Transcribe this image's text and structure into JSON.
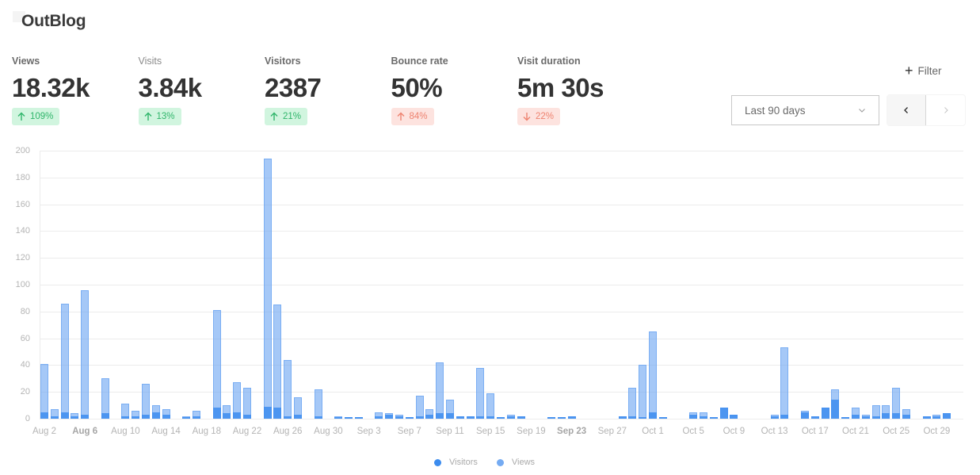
{
  "app": {
    "title": "OutBlog"
  },
  "metrics": [
    {
      "label": "Views",
      "value": "18.32k",
      "change": "109%",
      "direction": "up",
      "sentiment": "good",
      "label_style": "bold"
    },
    {
      "label": "Visits",
      "value": "3.84k",
      "change": "13%",
      "direction": "up",
      "sentiment": "good",
      "label_style": "light"
    },
    {
      "label": "Visitors",
      "value": "2387",
      "change": "21%",
      "direction": "up",
      "sentiment": "good",
      "label_style": "bold"
    },
    {
      "label": "Bounce rate",
      "value": "50%",
      "change": "84%",
      "direction": "up",
      "sentiment": "bad",
      "label_style": "bold"
    },
    {
      "label": "Visit duration",
      "value": "5m 30s",
      "change": "22%",
      "direction": "down",
      "sentiment": "bad",
      "label_style": "bold"
    }
  ],
  "controls": {
    "filter_label": "Filter",
    "date_range": "Last 90 days",
    "prev_icon": "chevron-left-icon",
    "next_icon": "chevron-right-icon"
  },
  "colors": {
    "visitors": "#3c8cee",
    "views": "#75abf2",
    "good_bg": "#d1f5df",
    "good_fg": "#2fb56a",
    "bad_bg": "#fde3df",
    "bad_fg": "#ee8370"
  },
  "legend": [
    {
      "label": "Visitors",
      "color": "#3c8cee"
    },
    {
      "label": "Views",
      "color": "#75abf2"
    }
  ],
  "chart_data": {
    "type": "bar",
    "stacked": "overlay",
    "title": "",
    "xlabel": "",
    "ylabel": "",
    "ylim": [
      0,
      200
    ],
    "yticks": [
      0,
      20,
      40,
      60,
      80,
      100,
      120,
      140,
      160,
      180,
      200
    ],
    "grid": true,
    "legend_position": "bottom",
    "x_tick_labels": [
      "Aug 2",
      "Aug 6",
      "Aug 10",
      "Aug 14",
      "Aug 18",
      "Aug 22",
      "Aug 26",
      "Aug 30",
      "Sep 3",
      "Sep 7",
      "Sep 11",
      "Sep 15",
      "Sep 19",
      "Sep 23",
      "Sep 27",
      "Oct 1",
      "Oct 5",
      "Oct 9",
      "Oct 13",
      "Oct 17",
      "Oct 21",
      "Oct 25",
      "Oct 29"
    ],
    "bold_tick_labels": [
      "Aug 6",
      "Sep 23"
    ],
    "categories": [
      "Aug 2",
      "Aug 3",
      "Aug 4",
      "Aug 5",
      "Aug 6",
      "Aug 7",
      "Aug 8",
      "Aug 9",
      "Aug 10",
      "Aug 11",
      "Aug 12",
      "Aug 13",
      "Aug 14",
      "Aug 15",
      "Aug 16",
      "Aug 17",
      "Aug 18",
      "Aug 19",
      "Aug 20",
      "Aug 21",
      "Aug 22",
      "Aug 23",
      "Aug 24",
      "Aug 25",
      "Aug 26",
      "Aug 27",
      "Aug 28",
      "Aug 29",
      "Aug 30",
      "Aug 31",
      "Sep 1",
      "Sep 2",
      "Sep 3",
      "Sep 4",
      "Sep 5",
      "Sep 6",
      "Sep 7",
      "Sep 8",
      "Sep 9",
      "Sep 10",
      "Sep 11",
      "Sep 12",
      "Sep 13",
      "Sep 14",
      "Sep 15",
      "Sep 16",
      "Sep 17",
      "Sep 18",
      "Sep 19",
      "Sep 20",
      "Sep 21",
      "Sep 22",
      "Sep 23",
      "Sep 24",
      "Sep 25",
      "Sep 26",
      "Sep 27",
      "Sep 28",
      "Sep 29",
      "Sep 30",
      "Oct 1",
      "Oct 2",
      "Oct 3",
      "Oct 4",
      "Oct 5",
      "Oct 6",
      "Oct 7",
      "Oct 8",
      "Oct 9",
      "Oct 10",
      "Oct 11",
      "Oct 12",
      "Oct 13",
      "Oct 14",
      "Oct 15",
      "Oct 16",
      "Oct 17",
      "Oct 18",
      "Oct 19",
      "Oct 20",
      "Oct 21",
      "Oct 22",
      "Oct 23",
      "Oct 24",
      "Oct 25",
      "Oct 26",
      "Oct 27",
      "Oct 28",
      "Oct 29",
      "Oct 30"
    ],
    "series": [
      {
        "name": "Views",
        "color": "#75abf2",
        "values": [
          41,
          7,
          86,
          4,
          96,
          0,
          30,
          0,
          11,
          6,
          26,
          10,
          7,
          0,
          2,
          6,
          0,
          81,
          10,
          27,
          23,
          0,
          194,
          85,
          44,
          16,
          0,
          22,
          0,
          2,
          1,
          1,
          0,
          5,
          4,
          3,
          1,
          17,
          7,
          42,
          14,
          2,
          2,
          38,
          19,
          1,
          3,
          2,
          0,
          0,
          1,
          1,
          2,
          0,
          0,
          0,
          0,
          2,
          23,
          40,
          65,
          1,
          0,
          0,
          5,
          5,
          1,
          8,
          3,
          0,
          0,
          0,
          3,
          53,
          0,
          6,
          2,
          8,
          22,
          1,
          8,
          3,
          10,
          10,
          23,
          7,
          0,
          2,
          3,
          4
        ]
      },
      {
        "name": "Visitors",
        "color": "#3c8cee",
        "values": [
          5,
          2,
          5,
          2,
          3,
          0,
          4,
          0,
          2,
          2,
          3,
          5,
          3,
          0,
          1,
          2,
          0,
          8,
          4,
          5,
          3,
          0,
          9,
          8,
          2,
          3,
          0,
          2,
          0,
          1,
          1,
          1,
          0,
          2,
          3,
          2,
          1,
          2,
          3,
          4,
          4,
          2,
          2,
          2,
          2,
          1,
          2,
          2,
          0,
          0,
          1,
          1,
          2,
          0,
          0,
          0,
          0,
          2,
          2,
          1,
          5,
          1,
          0,
          0,
          3,
          2,
          1,
          8,
          3,
          0,
          0,
          0,
          2,
          3,
          0,
          5,
          2,
          8,
          14,
          1,
          3,
          2,
          2,
          4,
          4,
          3,
          0,
          2,
          2,
          4
        ]
      }
    ]
  }
}
